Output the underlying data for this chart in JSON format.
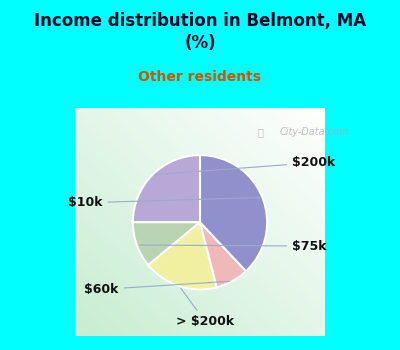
{
  "title": "Income distribution in Belmont, MA\n(%)",
  "subtitle": "Other residents",
  "title_color": "#0a0a2a",
  "subtitle_color": "#cc5500",
  "background_top": "#00ffff",
  "slices": [
    {
      "label": "$200k",
      "value": 25,
      "color": "#b8a8d8"
    },
    {
      "label": "$75k",
      "value": 11,
      "color": "#b8d4b0"
    },
    {
      "label": "> $200k",
      "value": 18,
      "color": "#f0f0a0"
    },
    {
      "label": "$60k",
      "value": 8,
      "color": "#f0b8b8"
    },
    {
      "label": "$10k",
      "value": 38,
      "color": "#9090cc"
    }
  ],
  "wedge_edge_color": "#ffffff",
  "wedge_linewidth": 1.5,
  "label_fontsize": 9,
  "label_color": "#111111",
  "watermark": "City-Data.com",
  "startangle": 90
}
